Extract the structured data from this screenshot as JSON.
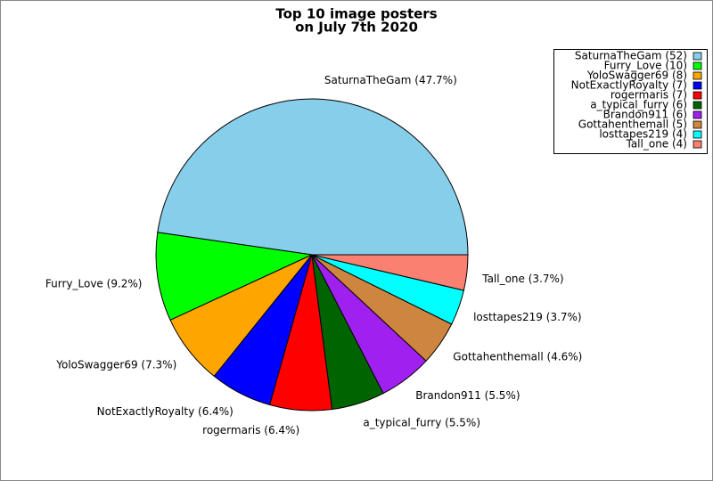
{
  "chart_data": {
    "type": "pie",
    "title": [
      "Top 10 image posters",
      "on July 7th 2020"
    ],
    "categories": [
      "SaturnaTheGam",
      "Furry_Love",
      "YoloSwagger69",
      "NotExactlyRoyalty",
      "rogermaris",
      "a_typical_furry",
      "Brandon911",
      "Gottahenthemall",
      "losttapes219",
      "Tall_one"
    ],
    "values": [
      52,
      10,
      8,
      7,
      7,
      6,
      6,
      5,
      4,
      4
    ],
    "value_labels": [
      "SaturnaTheGam (47.7%)",
      "Furry_Love (9.2%)",
      "YoloSwagger69 (7.3%)",
      "NotExactlyRoyalty (6.4%)",
      "rogermaris (6.4%)",
      "a_typical_furry (5.5%)",
      "Brandon911 (5.5%)",
      "Gottahenthemall (4.6%)",
      "losttapes219 (3.7%)",
      "Tall_one (3.7%)"
    ],
    "legend_labels": [
      "SaturnaTheGam (52)",
      "Furry_Love (10)",
      "YoloSwagger69 (8)",
      "NotExactlyRoyalty (7)",
      "rogermaris (7)",
      "a_typical_furry (6)",
      "Brandon911 (6)",
      "Gottahenthemall (5)",
      "losttapes219 (4)",
      "Tall_one (4)"
    ],
    "colors": [
      "#87ceeb",
      "#00ff00",
      "#ffa500",
      "#0000ff",
      "#ff0000",
      "#006400",
      "#a020f0",
      "#cd853f",
      "#00ffff",
      "#fa8072"
    ],
    "legend": "upper right"
  }
}
